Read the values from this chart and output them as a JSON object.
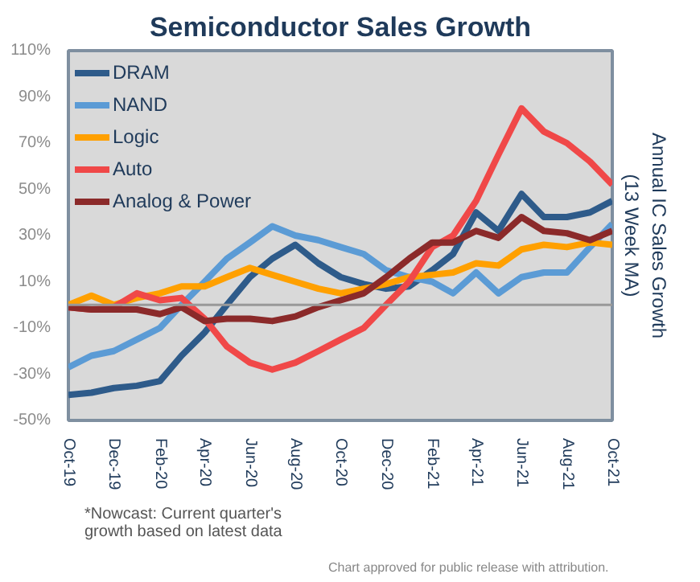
{
  "chart_data": {
    "type": "line",
    "title": "Semiconductor Sales Growth",
    "ylabel": "Annual IC Sales Growth\n(13 Week MA)",
    "x": [
      "2019-10",
      "2019-11",
      "2019-12",
      "2020-01",
      "2020-02",
      "2020-03",
      "2020-04",
      "2020-05",
      "2020-06",
      "2020-07",
      "2020-08",
      "2020-09",
      "2020-10",
      "2020-11",
      "2020-12",
      "2021-01",
      "2021-02",
      "2021-03",
      "2021-04",
      "2021-05",
      "2021-06",
      "2021-07",
      "2021-08",
      "2021-09",
      "2021-10"
    ],
    "series": [
      {
        "name": "DRAM",
        "color": "#2e5b8a",
        "values": [
          -39,
          -38,
          -36,
          -35,
          -33,
          -22,
          -12,
          0,
          12,
          20,
          26,
          18,
          12,
          9,
          7,
          8,
          15,
          22,
          40,
          32,
          48,
          38,
          38,
          40,
          45
        ]
      },
      {
        "name": "NAND",
        "color": "#5b9bd5",
        "values": [
          -27,
          -22,
          -20,
          -15,
          -10,
          0,
          10,
          20,
          27,
          34,
          30,
          28,
          25,
          22,
          15,
          12,
          10,
          5,
          14,
          5,
          12,
          14,
          14,
          25,
          35
        ]
      },
      {
        "name": "Logic",
        "color": "#ffa000",
        "values": [
          0,
          4,
          0,
          3,
          5,
          8,
          8,
          12,
          16,
          13,
          10,
          7,
          5,
          7,
          9,
          12,
          13,
          14,
          18,
          17,
          24,
          26,
          25,
          27,
          26
        ]
      },
      {
        "name": "Auto",
        "color": "#f04848",
        "values": [
          -1,
          -2,
          -1,
          5,
          2,
          3,
          -6,
          -18,
          -25,
          -28,
          -25,
          -20,
          -15,
          -10,
          0,
          10,
          25,
          30,
          45,
          65,
          85,
          75,
          70,
          62,
          52
        ]
      },
      {
        "name": "Analog & Power",
        "color": "#8b2a2a",
        "values": [
          -1,
          -2,
          -2,
          -2,
          -4,
          -1,
          -7,
          -6,
          -6,
          -7,
          -5,
          -1,
          2,
          5,
          12,
          20,
          27,
          27,
          32,
          29,
          38,
          32,
          31,
          28,
          32
        ]
      }
    ],
    "xlim": [
      "2019-10",
      "2021-10"
    ],
    "xticks": [
      {
        "value": "2019-10",
        "label": "Oct-19"
      },
      {
        "value": "2019-12",
        "label": "Dec-19"
      },
      {
        "value": "2020-02",
        "label": "Feb-20"
      },
      {
        "value": "2020-04",
        "label": "Apr-20"
      },
      {
        "value": "2020-06",
        "label": "Jun-20"
      },
      {
        "value": "2020-08",
        "label": "Aug-20"
      },
      {
        "value": "2020-10",
        "label": "Oct-20"
      },
      {
        "value": "2020-12",
        "label": "Dec-20"
      },
      {
        "value": "2021-02",
        "label": "Feb-21"
      },
      {
        "value": "2021-04",
        "label": "Apr-21"
      },
      {
        "value": "2021-06",
        "label": "Jun-21"
      },
      {
        "value": "2021-08",
        "label": "Aug-21"
      },
      {
        "value": "2021-10",
        "label": "Oct-21"
      }
    ],
    "ylim": [
      -50,
      110
    ],
    "yticks": [
      {
        "value": -50,
        "label": "-50%"
      },
      {
        "value": -30,
        "label": "-30%"
      },
      {
        "value": -10,
        "label": "-10%"
      },
      {
        "value": 10,
        "label": "10%"
      },
      {
        "value": 30,
        "label": "30%"
      },
      {
        "value": 50,
        "label": "50%"
      },
      {
        "value": 70,
        "label": "70%"
      },
      {
        "value": 90,
        "label": "90%"
      },
      {
        "value": 110,
        "label": "110%"
      }
    ],
    "ref_lines": [
      {
        "axis": "y",
        "value": 0,
        "color": "#999999"
      }
    ],
    "grid": false,
    "legend": "top left",
    "annotations": [
      "*Nowcast: Current  quarter's\ngrowth based on latest data",
      "Chart approved  for public release with attribution."
    ]
  }
}
